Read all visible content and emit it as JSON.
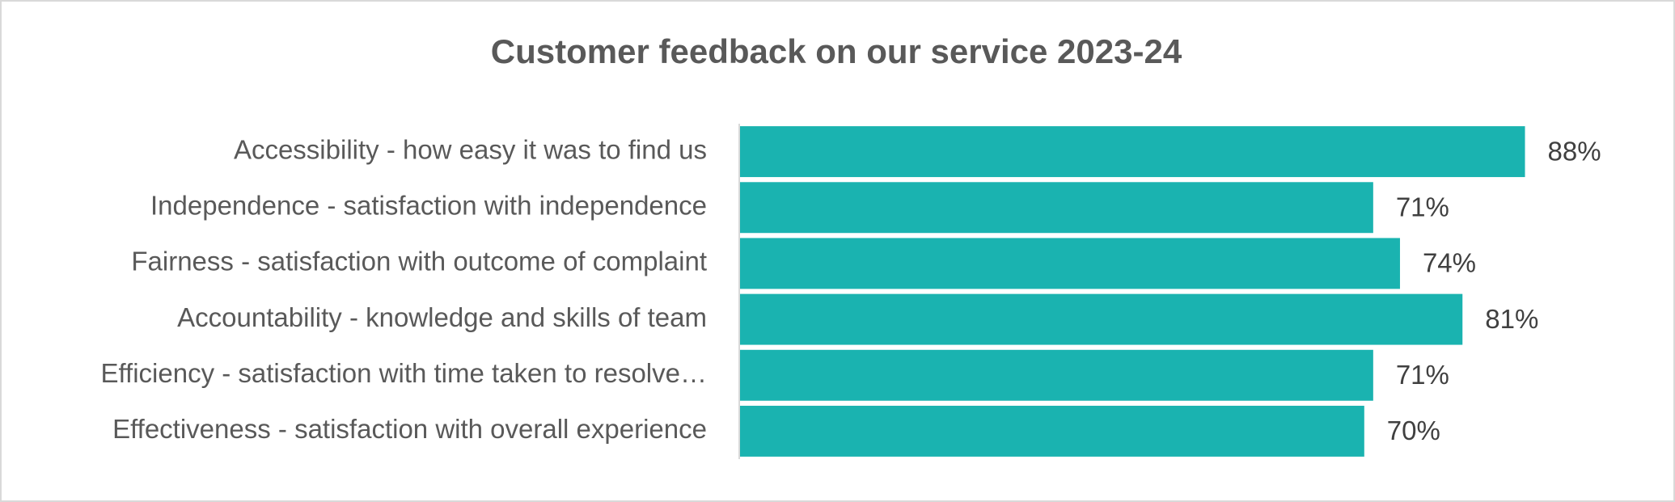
{
  "chart_data": {
    "type": "bar",
    "orientation": "horizontal",
    "title": "Customer feedback on our service 2023-24",
    "categories": [
      "Accessibility - how easy it was to find us",
      "Independence - satisfaction with independence",
      "Fairness - satisfaction with outcome of complaint",
      "Accountability - knowledge and skills of team",
      "Efficiency - satisfaction with time taken to resolve…",
      "Effectiveness - satisfaction with overall experience"
    ],
    "values": [
      88,
      71,
      74,
      81,
      71,
      70
    ],
    "value_labels": [
      "88%",
      "71%",
      "74%",
      "81%",
      "71%",
      "70%"
    ],
    "color": "#1ab3b0",
    "xlim": [
      0,
      100
    ]
  }
}
